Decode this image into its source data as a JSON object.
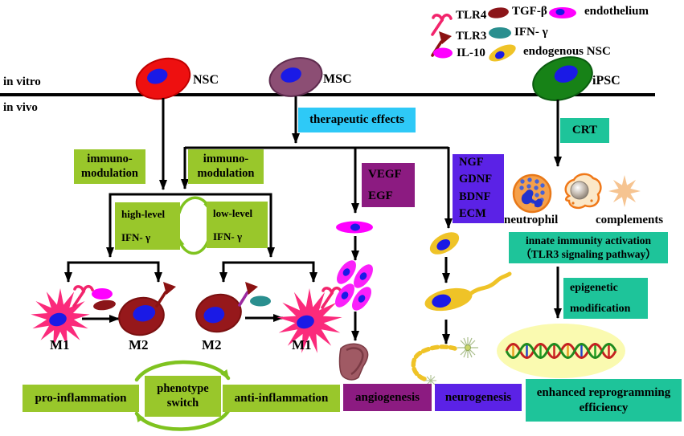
{
  "figure": {
    "region_labels": {
      "in_vitro": "in vitro",
      "in_vivo": "in vivo"
    },
    "cells": {
      "nsc": "NSC",
      "msc": "MSC",
      "ipsc": "iPSC",
      "m1_left": "M1",
      "m2_left": "M2",
      "m2_right": "M2",
      "m1_right": "M1",
      "neutrophil": "neutrophil",
      "complements": "complements"
    },
    "legend": {
      "tlr4": "TLR4",
      "tlr3": "TLR3",
      "il10": "IL-10",
      "tgf_beta": "TGF-β",
      "ifn_gamma": "IFN- γ",
      "endogenous_nsc": "endogenous NSC",
      "endothelium": "endothelium"
    },
    "boxes": {
      "therapeutic_effects": "therapeutic effects",
      "immuno_modulation_1": {
        "line1": "immuno-",
        "line2": "modulation"
      },
      "immuno_modulation_2": {
        "line1": "immuno-",
        "line2": "modulation"
      },
      "high_level": {
        "line1": "high-level",
        "line2": "IFN- γ"
      },
      "low_level": {
        "line1": "low-level",
        "line2": "IFN- γ"
      },
      "crt": "CRT",
      "vegf": {
        "line1": "VEGF",
        "line2": "EGF"
      },
      "ngf": {
        "line1": "NGF",
        "line2": "GDNF",
        "line3": "BDNF",
        "line4": "ECM"
      },
      "innate": {
        "line1": "innate immunity activation",
        "line2": "（TLR3 signaling pathway）"
      },
      "epigenetic": {
        "line1": "epigenetic",
        "line2": "modification"
      },
      "pro_inflammation": "pro-inflammation",
      "phenotype_switch": {
        "line1": "phenotype",
        "line2": "switch"
      },
      "anti_inflammation": "anti-inflammation",
      "angiogenesis": "angiogenesis",
      "neurogenesis": "neurogenesis",
      "enhanced": {
        "line1": "enhanced reprogramming",
        "line2": "efficiency"
      }
    },
    "colors": {
      "box_green": "#99C72B",
      "cycle_arrow_green": "#7FC31F",
      "box_cyan": "#2EC9F7",
      "box_teal": "#1EC49A",
      "box_purple": "#8C1B81",
      "box_violet": "#5B22E6",
      "nsc_red": "#EE1010",
      "msc_mauve": "#8C4E74",
      "ipsc_green": "#178217",
      "nucleus_blue": "#1A1AE6",
      "m1_pink": "#FB2A7B",
      "m2_dark_red": "#96181B",
      "il10_magenta": "#FF00FF",
      "tgf_dark_red": "#8B1519",
      "ifn_teal": "#2A8F8F",
      "tlr4_pink": "#F2246C",
      "tlr3_dark_red": "#8B1212",
      "endogenous_gold": "#EFC327",
      "neutrophil_orange": "#F5A04A",
      "complement_star_peach": "#F6C491",
      "dna_halo_yellow": "#FAFAB0"
    }
  }
}
